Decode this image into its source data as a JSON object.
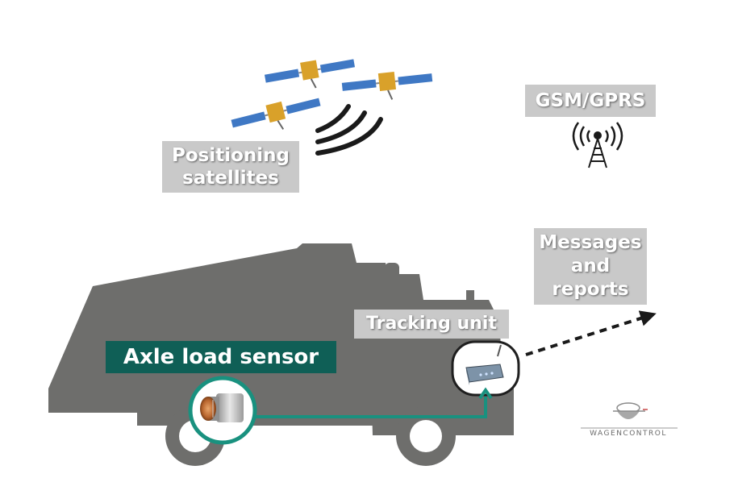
{
  "labels": {
    "positioning_line1": "Positioning",
    "positioning_line2": "satellites",
    "gsm": "GSM/GPRS",
    "messages_line1": "Messages",
    "messages_line2": "and",
    "messages_line3": "reports",
    "tracking": "Tracking unit",
    "axle": "Axle load sensor"
  },
  "logo": {
    "text": "WAGENCONTROL"
  },
  "colors": {
    "truck": "#6e6e6c",
    "label_bg": "#c9c9c9",
    "accent_teal": "#0f5f56",
    "connector_teal": "#19917f",
    "signal": "#1a1a1a",
    "satellite_panel": "#3f78c4",
    "satellite_body": "#d9a12a"
  },
  "icons": [
    "satellite-icon",
    "signal-waves-icon",
    "radio-tower-icon",
    "tracking-device-icon",
    "axle-load-sensor-icon",
    "arrow-icon"
  ]
}
